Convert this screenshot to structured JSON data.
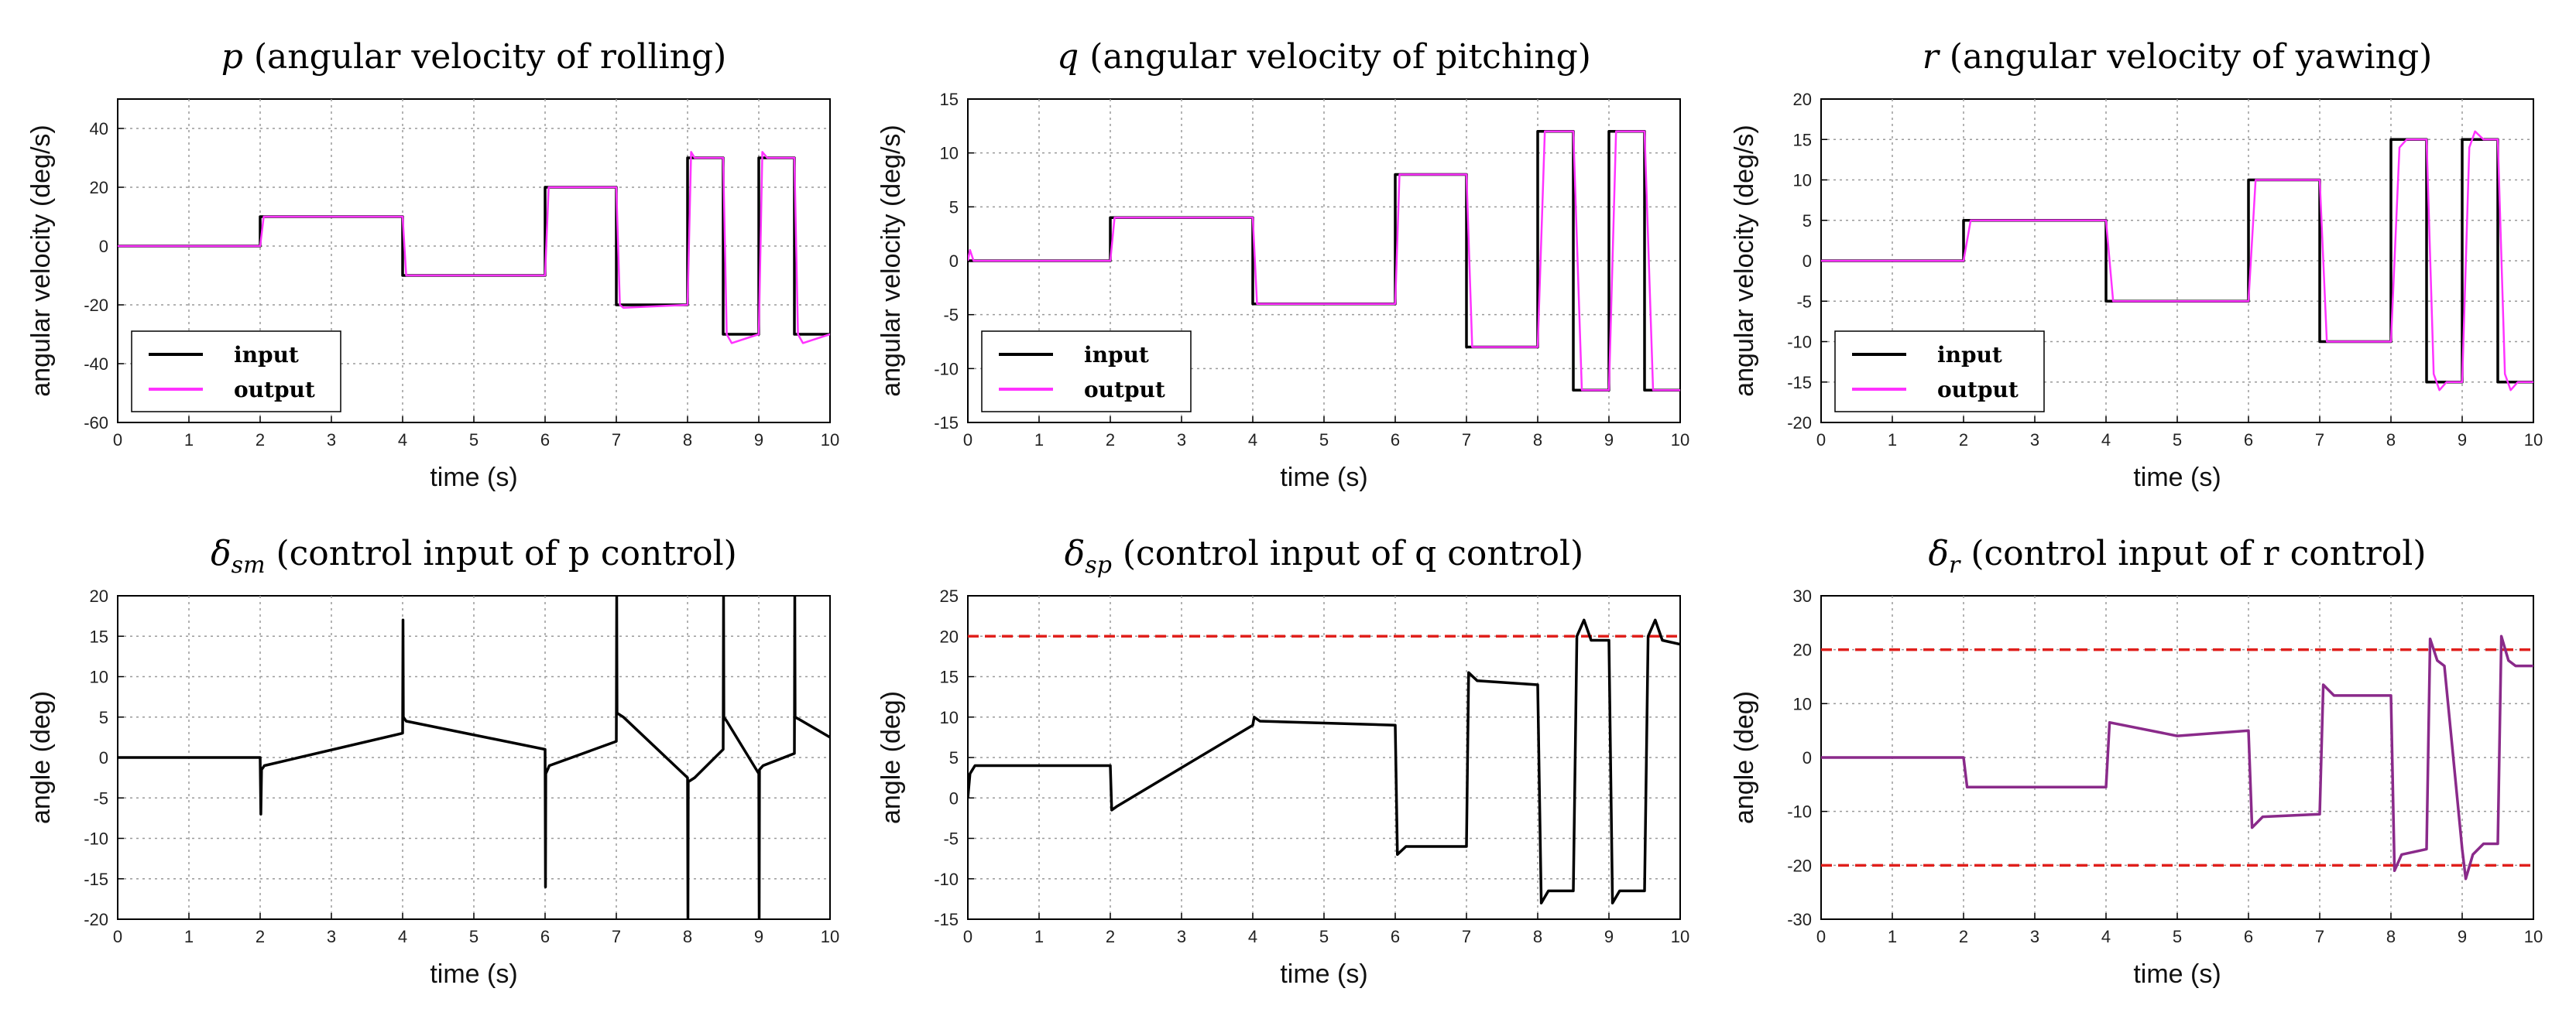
{
  "chart_data": [
    {
      "type": "line",
      "title": {
        "symbol": "p",
        "sub": "",
        "text": " (angular velocity of rolling)"
      },
      "xlabel": "time (s)",
      "ylabel": "angular velocity (deg/s)",
      "xlim": [
        0,
        10
      ],
      "ylim": [
        -60,
        50
      ],
      "xticks": [
        0,
        1,
        2,
        3,
        4,
        5,
        6,
        7,
        8,
        9,
        10
      ],
      "yticks": [
        -60,
        -40,
        -20,
        0,
        20,
        40
      ],
      "legend": {
        "position": "bottom-left",
        "entries": [
          {
            "label": "input",
            "color": "#000000"
          },
          {
            "label": "output",
            "color": "#ff33ff"
          }
        ]
      },
      "series": [
        {
          "name": "input",
          "color": "#000000",
          "x": [
            0,
            2,
            2,
            4,
            4,
            6,
            6,
            7,
            7,
            8,
            8,
            8.5,
            8.5,
            9,
            9,
            9.5,
            9.5,
            10
          ],
          "y": [
            0,
            0,
            10,
            10,
            -10,
            -10,
            20,
            20,
            -20,
            -20,
            30,
            30,
            -30,
            -30,
            30,
            30,
            -30,
            -30
          ]
        },
        {
          "name": "output",
          "color": "#ff33ff",
          "x": [
            0,
            2,
            2.05,
            4,
            4.05,
            4.1,
            6,
            6.05,
            7,
            7.05,
            7.1,
            8,
            8.05,
            8.1,
            8.5,
            8.55,
            8.62,
            9,
            9.05,
            9.12,
            9.5,
            9.55,
            9.62,
            10
          ],
          "y": [
            0,
            0,
            10,
            10,
            -10,
            -10,
            -10,
            20,
            20,
            -20,
            -21,
            -20,
            32,
            30,
            30,
            -30,
            -33,
            -30,
            32,
            30,
            30,
            -30,
            -33,
            -30
          ]
        }
      ]
    },
    {
      "type": "line",
      "title": {
        "symbol": "q",
        "sub": "",
        "text": " (angular velocity of pitching)"
      },
      "xlabel": "time (s)",
      "ylabel": "angular velocity (deg/s)",
      "xlim": [
        0,
        10
      ],
      "ylim": [
        -15,
        15
      ],
      "xticks": [
        0,
        1,
        2,
        3,
        4,
        5,
        6,
        7,
        8,
        9,
        10
      ],
      "yticks": [
        -15,
        -10,
        -5,
        0,
        5,
        10,
        15
      ],
      "legend": {
        "position": "bottom-left",
        "entries": [
          {
            "label": "input",
            "color": "#000000"
          },
          {
            "label": "output",
            "color": "#ff33ff"
          }
        ]
      },
      "series": [
        {
          "name": "input",
          "color": "#000000",
          "x": [
            0,
            2,
            2,
            4,
            4,
            6,
            6,
            7,
            7,
            8,
            8,
            8.5,
            8.5,
            9,
            9,
            9.5,
            9.5,
            10
          ],
          "y": [
            0,
            0,
            4,
            4,
            -4,
            -4,
            8,
            8,
            -8,
            -8,
            12,
            12,
            -12,
            -12,
            12,
            12,
            -12,
            -12
          ]
        },
        {
          "name": "output",
          "color": "#ff33ff",
          "x": [
            0,
            0.03,
            0.08,
            2,
            2.06,
            4,
            4.06,
            6,
            6.06,
            7,
            7.08,
            8,
            8.1,
            8.2,
            8.5,
            8.62,
            8.75,
            9,
            9.1,
            9.2,
            9.5,
            9.62,
            9.75,
            10
          ],
          "y": [
            0,
            1,
            0,
            0,
            4,
            4,
            -4,
            -4,
            8,
            8,
            -8,
            -8,
            12,
            12,
            12,
            -12,
            -12,
            -12,
            12,
            12,
            12,
            -12,
            -12,
            -12
          ]
        }
      ]
    },
    {
      "type": "line",
      "title": {
        "symbol": "r",
        "sub": "",
        "text": " (angular velocity of yawing)"
      },
      "xlabel": "time (s)",
      "ylabel": "angular velocity (deg/s)",
      "xlim": [
        0,
        10
      ],
      "ylim": [
        -20,
        20
      ],
      "xticks": [
        0,
        1,
        2,
        3,
        4,
        5,
        6,
        7,
        8,
        9,
        10
      ],
      "yticks": [
        -20,
        -15,
        -10,
        -5,
        0,
        5,
        10,
        15,
        20
      ],
      "legend": {
        "position": "bottom-left",
        "entries": [
          {
            "label": "input",
            "color": "#000000"
          },
          {
            "label": "output",
            "color": "#ff33ff"
          }
        ]
      },
      "series": [
        {
          "name": "input",
          "color": "#000000",
          "x": [
            0,
            2,
            2,
            4,
            4,
            6,
            6,
            7,
            7,
            8,
            8,
            8.5,
            8.5,
            9,
            9,
            9.5,
            9.5,
            10
          ],
          "y": [
            0,
            0,
            5,
            5,
            -5,
            -5,
            10,
            10,
            -10,
            -10,
            15,
            15,
            -15,
            -15,
            15,
            15,
            -15,
            -15
          ]
        },
        {
          "name": "output",
          "color": "#ff33ff",
          "x": [
            0,
            2,
            2.1,
            4,
            4.1,
            6,
            6.1,
            7,
            7.1,
            8,
            8.12,
            8.22,
            8.5,
            8.6,
            8.68,
            8.78,
            9,
            9.1,
            9.18,
            9.3,
            9.5,
            9.6,
            9.68,
            9.78,
            10
          ],
          "y": [
            0,
            0,
            5,
            5,
            -5,
            -5,
            10,
            10,
            -10,
            -10,
            14,
            15,
            15,
            -14,
            -16,
            -15,
            -15,
            14,
            16,
            15,
            15,
            -14,
            -16,
            -15,
            -15
          ]
        }
      ]
    },
    {
      "type": "line",
      "title": {
        "symbol": "δ",
        "sub": "sm",
        "text": " (control input of p control)"
      },
      "xlabel": "time (s)",
      "ylabel": "angle (deg)",
      "xlim": [
        0,
        10
      ],
      "ylim": [
        -20,
        20
      ],
      "xticks": [
        0,
        1,
        2,
        3,
        4,
        5,
        6,
        7,
        8,
        9,
        10
      ],
      "yticks": [
        -20,
        -15,
        -10,
        -5,
        0,
        5,
        10,
        15,
        20
      ],
      "limit_lines": [],
      "series": [
        {
          "name": "control input",
          "color": "#000000",
          "x": [
            0,
            2,
            2.01,
            2.02,
            2.06,
            4,
            4.005,
            4.01,
            4.05,
            6,
            6.005,
            6.01,
            6.06,
            7,
            7.005,
            7.01,
            7.1,
            8,
            8.005,
            8.01,
            8.1,
            8.5,
            8.505,
            8.51,
            8.55,
            9,
            9.005,
            9.01,
            9.06,
            9.5,
            9.505,
            9.51,
            9.55,
            10
          ],
          "y": [
            0,
            0,
            -7,
            -1.5,
            -1,
            3,
            17,
            5,
            4.5,
            1,
            -16,
            -2,
            -1,
            2,
            20,
            5.5,
            5,
            -2.5,
            -20,
            -3,
            -2.5,
            1,
            20,
            5,
            4.5,
            -2,
            -20,
            -1.5,
            -1,
            0.5,
            20,
            5,
            4.8,
            2.5
          ]
        }
      ]
    },
    {
      "type": "line",
      "title": {
        "symbol": "δ",
        "sub": "sp",
        "text": " (control input of q control)"
      },
      "xlabel": "time (s)",
      "ylabel": "angle (deg)",
      "xlim": [
        0,
        10
      ],
      "ylim": [
        -15,
        25
      ],
      "xticks": [
        0,
        1,
        2,
        3,
        4,
        5,
        6,
        7,
        8,
        9,
        10
      ],
      "yticks": [
        -15,
        -10,
        -5,
        0,
        5,
        10,
        15,
        20,
        25
      ],
      "limit_lines": [
        20
      ],
      "series": [
        {
          "name": "control input",
          "color": "#000000",
          "x": [
            0,
            0.03,
            0.1,
            2,
            2.02,
            2.1,
            4,
            4.02,
            4.1,
            6,
            6.03,
            6.15,
            7,
            7.03,
            7.15,
            8,
            8.05,
            8.15,
            8.5,
            8.55,
            8.65,
            8.75,
            9,
            9.05,
            9.15,
            9.5,
            9.55,
            9.65,
            9.75,
            10
          ],
          "y": [
            0,
            3,
            4,
            4,
            -1.5,
            -1,
            9,
            10,
            9.5,
            9,
            -7,
            -6,
            -6,
            15.5,
            14.5,
            14,
            -13,
            -11.5,
            -11.5,
            20,
            22,
            19.5,
            19.5,
            -13,
            -11.5,
            -11.5,
            20,
            22,
            19.5,
            19
          ]
        }
      ]
    },
    {
      "type": "line",
      "title": {
        "symbol": "δ",
        "sub": "r",
        "text": " (control input of r control)"
      },
      "xlabel": "time (s)",
      "ylabel": "angle (deg)",
      "xlim": [
        0,
        10
      ],
      "ylim": [
        -30,
        30
      ],
      "xticks": [
        0,
        1,
        2,
        3,
        4,
        5,
        6,
        7,
        8,
        9,
        10
      ],
      "yticks": [
        -30,
        -20,
        -10,
        0,
        10,
        20,
        30
      ],
      "limit_lines": [
        20,
        -20
      ],
      "series": [
        {
          "name": "control input",
          "color": "#8a2a8a",
          "x": [
            0,
            2,
            2.05,
            4,
            4.05,
            5,
            6,
            6.05,
            6.2,
            7,
            7.05,
            7.2,
            8,
            8.05,
            8.15,
            8.5,
            8.55,
            8.65,
            8.75,
            9,
            9.05,
            9.15,
            9.3,
            9.5,
            9.55,
            9.65,
            9.75,
            10
          ],
          "y": [
            0,
            0,
            -5.5,
            -5.5,
            6.5,
            4,
            5,
            -13,
            -11,
            -10.5,
            13.5,
            11.5,
            11.5,
            -21,
            -18,
            -17,
            22,
            18,
            17,
            -17,
            -22.5,
            -18,
            -16,
            -16,
            22.5,
            18,
            17,
            17
          ]
        }
      ]
    }
  ]
}
